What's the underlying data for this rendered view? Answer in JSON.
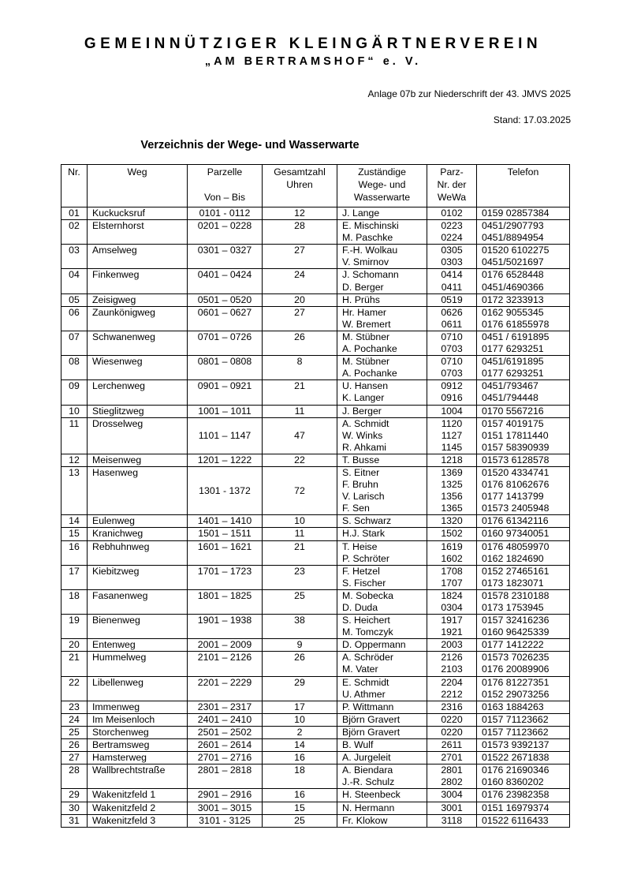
{
  "page": {
    "title_line1": "GEMEINNÜTZIGER KLEINGÄRTNERVEREIN",
    "title_line2": "„AM BERTRAMSHOF“ e. V.",
    "annotation": "Anlage 07b zur Niederschrift der 43. JMVS 2025",
    "stand": "Stand: 17.03.2025",
    "table_title": "Verzeichnis der Wege- und Wasserwarte"
  },
  "table": {
    "columns": [
      {
        "key": "nr",
        "lines": [
          "Nr."
        ]
      },
      {
        "key": "weg",
        "lines": [
          "Weg"
        ]
      },
      {
        "key": "parzelle",
        "lines": [
          "Parzelle",
          "",
          "Von  –  Bis"
        ]
      },
      {
        "key": "uhren",
        "lines": [
          "Gesamtzahl",
          "Uhren"
        ]
      },
      {
        "key": "warte",
        "lines": [
          "Zuständige",
          "Wege- und",
          "Wasserwarte"
        ]
      },
      {
        "key": "parznr",
        "lines": [
          "Parz-",
          "Nr. der",
          "WeWa"
        ]
      },
      {
        "key": "telefon",
        "lines": [
          "Telefon"
        ]
      }
    ],
    "rows": [
      {
        "nr": "01",
        "weg": "Kuckucksruf",
        "parzelle": "0101 - 0112",
        "uhren": "12",
        "warte": [
          {
            "name": "J. Lange",
            "parz": "0102",
            "tel": "0159 02857384"
          }
        ]
      },
      {
        "nr": "02",
        "weg": "Elsternhorst",
        "parzelle": "0201 – 0228",
        "uhren": "28",
        "warte": [
          {
            "name": "E. Mischinski",
            "parz": "0223",
            "tel": "0451/2907793"
          },
          {
            "name": "M. Paschke",
            "parz": "0224",
            "tel": "0451/8894954"
          }
        ]
      },
      {
        "nr": "03",
        "weg": "Amselweg",
        "parzelle": "0301 – 0327",
        "uhren": "27",
        "warte": [
          {
            "name": "F.-H. Wolkau",
            "parz": "0305",
            "tel": "01520 6102275"
          },
          {
            "name": "V. Smirnov",
            "parz": "0303",
            "tel": "0451/5021697"
          }
        ]
      },
      {
        "nr": "04",
        "weg": "Finkenweg",
        "parzelle": "0401 – 0424",
        "uhren": "24",
        "warte": [
          {
            "name": "J. Schomann",
            "parz": "0414",
            "tel": "0176 6528448"
          },
          {
            "name": "D. Berger",
            "parz": "0411",
            "tel": "0451/4690366"
          }
        ]
      },
      {
        "nr": "05",
        "weg": "Zeisigweg",
        "parzelle": "0501 – 0520",
        "uhren": "20",
        "warte": [
          {
            "name": "H. Prühs",
            "parz": "0519",
            "tel": "0172 3233913"
          }
        ]
      },
      {
        "nr": "06",
        "weg": "Zaunkönigweg",
        "parzelle": "0601 – 0627",
        "uhren": "27",
        "warte": [
          {
            "name": "Hr. Hamer",
            "parz": "0626",
            "tel": "0162 9055345"
          },
          {
            "name": "W. Bremert",
            "parz": "0611",
            "tel": "0176 61855978"
          }
        ]
      },
      {
        "nr": "07",
        "weg": "Schwanenweg",
        "parzelle": "0701 – 0726",
        "uhren": "26",
        "warte": [
          {
            "name": "M. Stübner",
            "parz": "0710",
            "tel": "0451 / 6191895"
          },
          {
            "name": "A. Pochanke",
            "parz": "0703",
            "tel": "0177 6293251"
          }
        ]
      },
      {
        "nr": "08",
        "weg": "Wiesenweg",
        "parzelle": "0801 – 0808",
        "uhren": "8",
        "warte": [
          {
            "name": "M. Stübner",
            "parz": "0710",
            "tel": "0451/6191895"
          },
          {
            "name": "A. Pochanke",
            "parz": "0703",
            "tel": "0177 6293251"
          }
        ]
      },
      {
        "nr": "09",
        "weg": "Lerchenweg",
        "parzelle": "0901 – 0921",
        "uhren": "21",
        "warte": [
          {
            "name": "U. Hansen",
            "parz": "0912",
            "tel": "0451/793467"
          },
          {
            "name": "K. Langer",
            "parz": "0916",
            "tel": "0451/794448"
          }
        ]
      },
      {
        "nr": "10",
        "weg": "Stieglitzweg",
        "parzelle": "1001 – 1011",
        "uhren": "11",
        "warte": [
          {
            "name": "J. Berger",
            "parz": "1004",
            "tel": "0170 5567216"
          }
        ]
      },
      {
        "nr": "11",
        "weg": "Drosselweg",
        "parzelle": "1101 – 1147",
        "uhren": "47",
        "warte": [
          {
            "name": "A. Schmidt",
            "parz": "1120",
            "tel": "0157 4019175"
          },
          {
            "name": "W. Winks",
            "parz": "1127",
            "tel": "0151 17811440"
          },
          {
            "name": "R. Ahkami",
            "parz": "1145",
            "tel": "0157 58390939"
          }
        ]
      },
      {
        "nr": "12",
        "weg": "Meisenweg",
        "parzelle": "1201 – 1222",
        "uhren": "22",
        "warte": [
          {
            "name": "T. Busse",
            "parz": "1218",
            "tel": "01573 6128578"
          }
        ]
      },
      {
        "nr": "13",
        "weg": "Hasenweg",
        "parzelle": "1301 - 1372",
        "uhren": "72",
        "warte": [
          {
            "name": "S. Eitner",
            "parz": "1369",
            "tel": "01520 4334741"
          },
          {
            "name": "F. Bruhn",
            "parz": "1325",
            "tel": "0176 81062676"
          },
          {
            "name": "V. Larisch",
            "parz": "1356",
            "tel": "0177 1413799"
          },
          {
            "name": "F. Sen",
            "parz": "1365",
            "tel": "01573 2405948"
          }
        ]
      },
      {
        "nr": "14",
        "weg": "Eulenweg",
        "parzelle": "1401 – 1410",
        "uhren": "10",
        "warte": [
          {
            "name": "S. Schwarz",
            "parz": "1320",
            "tel": "0176 61342116"
          }
        ]
      },
      {
        "nr": "15",
        "weg": "Kranichweg",
        "parzelle": "1501 – 1511",
        "uhren": "11",
        "warte": [
          {
            "name": "H.J. Stark",
            "parz": "1502",
            "tel": "0160 97340051"
          }
        ]
      },
      {
        "nr": "16",
        "weg": "Rebhuhnweg",
        "parzelle": "1601 – 1621",
        "uhren": "21",
        "warte": [
          {
            "name": "T. Heise",
            "parz": "1619",
            "tel": "0176 48059970"
          },
          {
            "name": "P. Schröter",
            "parz": "1602",
            "tel": "0162 1824690"
          }
        ]
      },
      {
        "nr": "17",
        "weg": "Kiebitzweg",
        "parzelle": "1701 – 1723",
        "uhren": "23",
        "warte": [
          {
            "name": "F. Hetzel",
            "parz": "1708",
            "tel": "0152 27465161"
          },
          {
            "name": "S. Fischer",
            "parz": "1707",
            "tel": "0173 1823071"
          }
        ]
      },
      {
        "nr": "18",
        "weg": "Fasanenweg",
        "parzelle": "1801 – 1825",
        "uhren": "25",
        "warte": [
          {
            "name": "M. Sobecka",
            "parz": "1824",
            "tel": "01578 2310188"
          },
          {
            "name": "D. Duda",
            "parz": "0304",
            "tel": "0173 1753945"
          }
        ]
      },
      {
        "nr": "19",
        "weg": "Bienenweg",
        "parzelle": "1901 – 1938",
        "uhren": "38",
        "warte": [
          {
            "name": "S. Heichert",
            "parz": "1917",
            "tel": "0157 32416236"
          },
          {
            "name": "M. Tomczyk",
            "parz": "1921",
            "tel": "0160 96425339"
          }
        ]
      },
      {
        "nr": "20",
        "weg": "Entenweg",
        "parzelle": "2001 – 2009",
        "uhren": "9",
        "warte": [
          {
            "name": "D. Oppermann",
            "parz": "2003",
            "tel": "0177 1412222"
          }
        ]
      },
      {
        "nr": "21",
        "weg": "Hummelweg",
        "parzelle": "2101 – 2126",
        "uhren": "26",
        "warte": [
          {
            "name": "A. Schröder",
            "parz": "2126",
            "tel": "01573 7026235"
          },
          {
            "name": "M. Vater",
            "parz": "2103",
            "tel": "0176 20089906"
          }
        ]
      },
      {
        "nr": "22",
        "weg": "Libellenweg",
        "parzelle": "2201 – 2229",
        "uhren": "29",
        "warte": [
          {
            "name": "E. Schmidt",
            "parz": "2204",
            "tel": "0176 81227351"
          },
          {
            "name": "U. Athmer",
            "parz": "2212",
            "tel": "0152 29073256"
          }
        ]
      },
      {
        "nr": "23",
        "weg": "Immenweg",
        "parzelle": "2301 – 2317",
        "uhren": "17",
        "warte": [
          {
            "name": "P. Wittmann",
            "parz": "2316",
            "tel": "0163 1884263"
          }
        ]
      },
      {
        "nr": "24",
        "weg": "Im Meisenloch",
        "parzelle": "2401 – 2410",
        "uhren": "10",
        "warte": [
          {
            "name": "Björn Gravert",
            "parz": "0220",
            "tel": "0157 71123662"
          }
        ]
      },
      {
        "nr": "25",
        "weg": "Storchenweg",
        "parzelle": "2501 – 2502",
        "uhren": "2",
        "warte": [
          {
            "name": "Björn Gravert",
            "parz": "0220",
            "tel": "0157 71123662"
          }
        ]
      },
      {
        "nr": "26",
        "weg": "Bertramsweg",
        "parzelle": "2601 – 2614",
        "uhren": "14",
        "warte": [
          {
            "name": "B. Wulf",
            "parz": "2611",
            "tel": "01573 9392137"
          }
        ]
      },
      {
        "nr": "27",
        "weg": "Hamsterweg",
        "parzelle": "2701 – 2716",
        "uhren": "16",
        "warte": [
          {
            "name": "A. Jurgeleit",
            "parz": "2701",
            "tel": "01522 2671838"
          }
        ]
      },
      {
        "nr": "28",
        "weg": "Wallbrechtstraße",
        "parzelle": "2801 – 2818",
        "uhren": "18",
        "warte": [
          {
            "name": "A. Biendara",
            "parz": "2801",
            "tel": "0176 21690346"
          },
          {
            "name": "J.-R. Schulz",
            "parz": "2802",
            "tel": "0160 8360202"
          }
        ]
      },
      {
        "nr": "29",
        "weg": "Wakenitzfeld 1",
        "parzelle": "2901 – 2916",
        "uhren": "16",
        "warte": [
          {
            "name": "H. Steenbeck",
            "parz": "3004",
            "tel": "0176 23982358"
          }
        ]
      },
      {
        "nr": "30",
        "weg": "Wakenitzfeld 2",
        "parzelle": "3001 – 3015",
        "uhren": "15",
        "warte": [
          {
            "name": "N. Hermann",
            "parz": "3001",
            "tel": "0151 16979374"
          }
        ]
      },
      {
        "nr": "31",
        "weg": "Wakenitzfeld 3",
        "parzelle": "3101 - 3125",
        "uhren": "25",
        "warte": [
          {
            "name": "Fr. Klokow",
            "parz": "3118",
            "tel": "01522 6116433"
          }
        ]
      }
    ]
  }
}
